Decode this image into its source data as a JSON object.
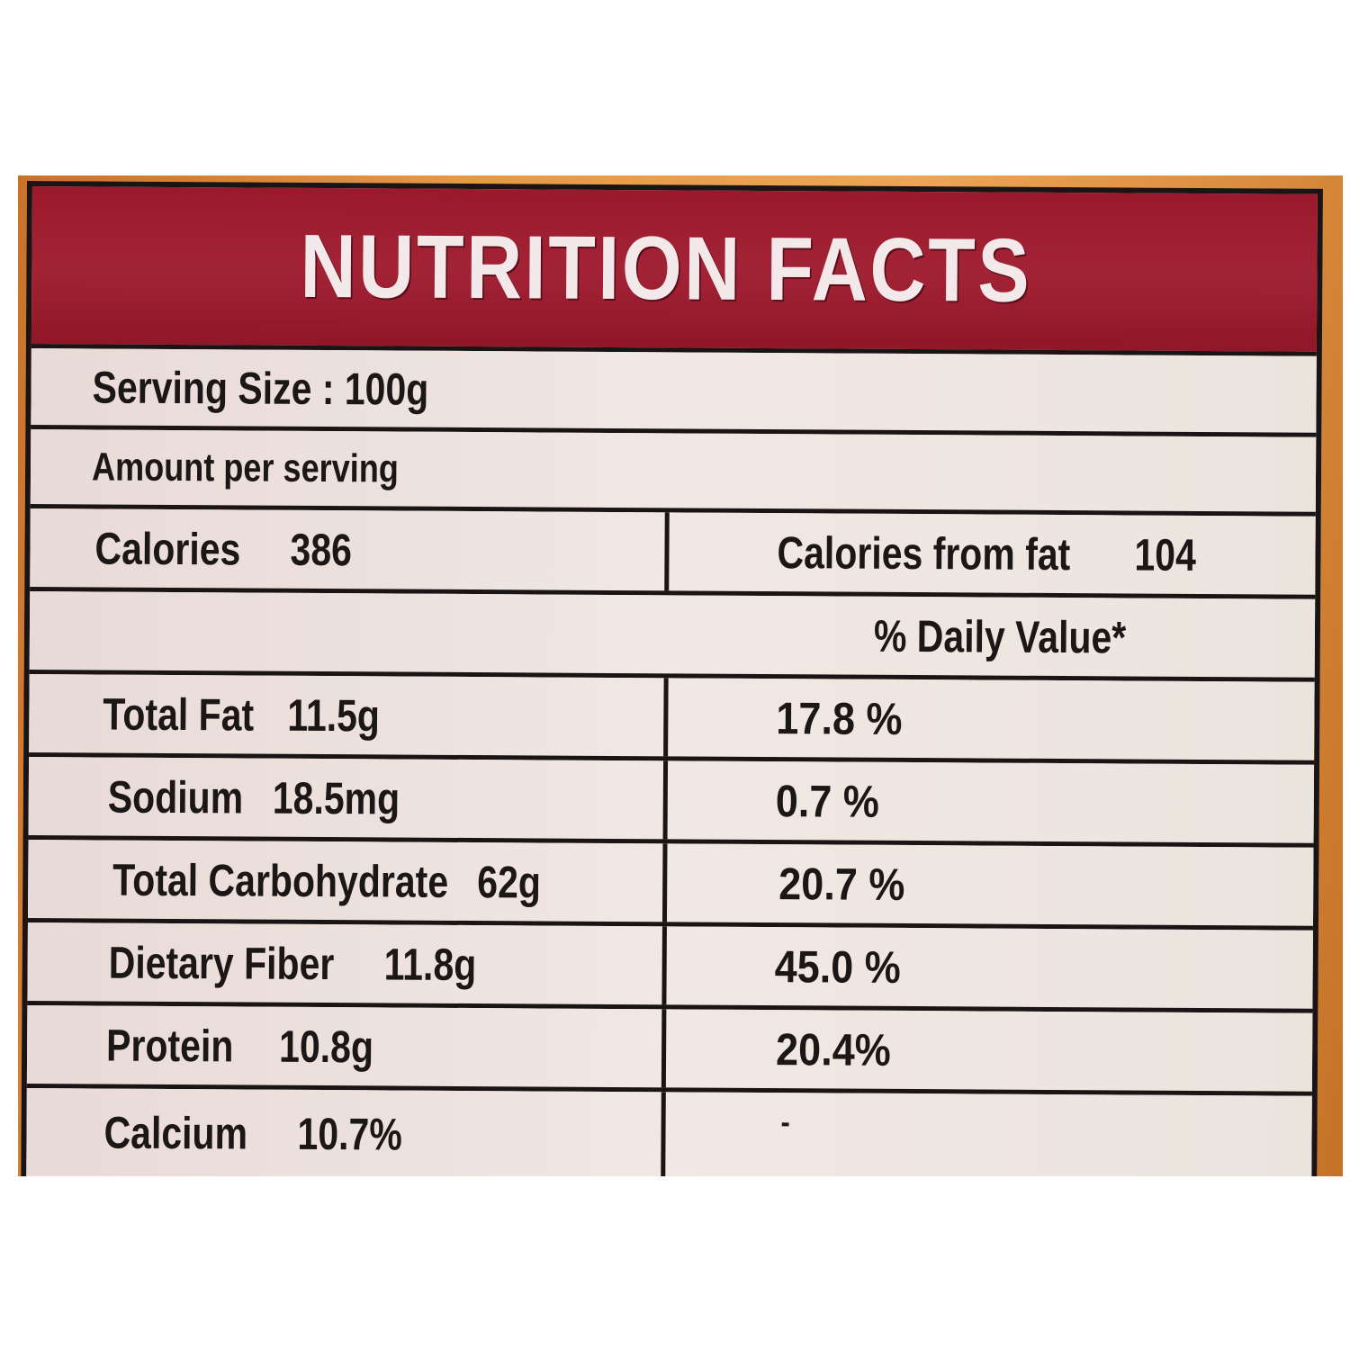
{
  "title": "NUTRITION FACTS",
  "serving_size": "Serving Size : 100g",
  "amount_per_serving": "Amount per serving",
  "calories": {
    "label": "Calories",
    "value": "386"
  },
  "calories_from_fat": {
    "label": "Calories from fat",
    "value": "104"
  },
  "daily_value_header": "% Daily Value*",
  "nutrients": [
    {
      "name": "Total Fat",
      "amount": "11.5g",
      "daily_value": "17.8 %"
    },
    {
      "name": "Sodium",
      "amount": "18.5mg",
      "daily_value": "0.7 %"
    },
    {
      "name": "Total Carbohydrate",
      "amount": "62g",
      "daily_value": "20.7 %"
    },
    {
      "name": "Dietary Fiber",
      "amount": "11.8g",
      "daily_value": "45.0 %"
    },
    {
      "name": "Protein",
      "amount": "10.8g",
      "daily_value": "20.4%"
    },
    {
      "name": "Calcium",
      "amount": "10.7%",
      "daily_value": "-"
    }
  ],
  "colors": {
    "header_red": "#a32336",
    "label_background": "#f0e7e3",
    "package_orange": "#e79845",
    "ink": "#1c1717"
  }
}
